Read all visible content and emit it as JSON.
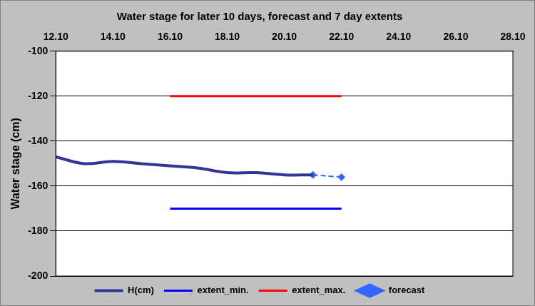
{
  "chart_data": {
    "type": "line",
    "title": "Water stage for later 10 days, forecast and 7 day extents",
    "y_label": "Water stage (cm)",
    "categories": [
      "12.10",
      null,
      "14.10",
      null,
      "16.10",
      null,
      "18.10",
      null,
      "20.10",
      null,
      "22.10",
      null,
      "24.10",
      null,
      "26.10",
      null,
      "28.10"
    ],
    "series": [
      {
        "name": "H(cm)",
        "color": "#333399",
        "line_style": "solid",
        "marker": "none",
        "values": [
          -147,
          -150,
          -149,
          -150,
          -151,
          -152,
          -154,
          -154,
          -155,
          -155,
          null,
          null,
          null,
          null,
          null,
          null,
          null
        ]
      },
      {
        "name": "extent_min.",
        "color": "#0000ff",
        "line_style": "solid",
        "marker": "none",
        "values": [
          null,
          null,
          null,
          null,
          -170,
          -170,
          -170,
          -170,
          -170,
          -170,
          -170,
          null,
          null,
          null,
          null,
          null,
          null
        ]
      },
      {
        "name": "extent_max.",
        "color": "#ff0000",
        "line_style": "solid",
        "marker": "none",
        "values": [
          null,
          null,
          null,
          null,
          -120,
          -120,
          -120,
          -120,
          -120,
          -120,
          -120,
          null,
          null,
          null,
          null,
          null,
          null
        ]
      },
      {
        "name": "forecast",
        "color": "#3366ff",
        "line_style": "dashed",
        "marker": "diamond",
        "values": [
          null,
          null,
          null,
          null,
          null,
          null,
          null,
          null,
          null,
          -155,
          -156,
          null,
          null,
          null,
          null,
          null,
          null
        ]
      }
    ],
    "ylim": [
      -200,
      -100
    ],
    "yticks": [
      -200,
      -180,
      -160,
      -140,
      -120,
      -100
    ],
    "grid": "y",
    "legend": "bottom"
  }
}
